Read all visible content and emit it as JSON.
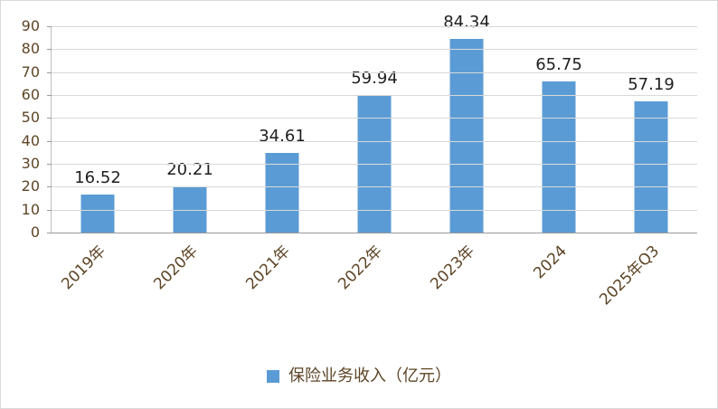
{
  "chart_data": {
    "type": "bar",
    "categories": [
      "2019年",
      "2020年",
      "2021年",
      "2022年",
      "2023年",
      "2024",
      "2025年Q3"
    ],
    "values": [
      16.52,
      20.21,
      34.61,
      59.94,
      84.34,
      65.75,
      57.19
    ],
    "data_labels": [
      "16.52",
      "20.21",
      "34.61",
      "59.94",
      "84.34",
      "65.75",
      "57.19"
    ],
    "title": "",
    "xlabel": "",
    "ylabel": "",
    "ylim": [
      0,
      90
    ],
    "yticks": [
      0,
      10,
      20,
      30,
      40,
      50,
      60,
      70,
      80,
      90
    ],
    "grid": true,
    "legend_position": "bottom",
    "colors": {
      "bar": "#5B9BD5",
      "axis_label": "#5e4526",
      "data_label": "#1f1f1f",
      "gridline": "#d9d9d9"
    }
  },
  "legend": {
    "label": "保险业务收入（亿元）"
  }
}
